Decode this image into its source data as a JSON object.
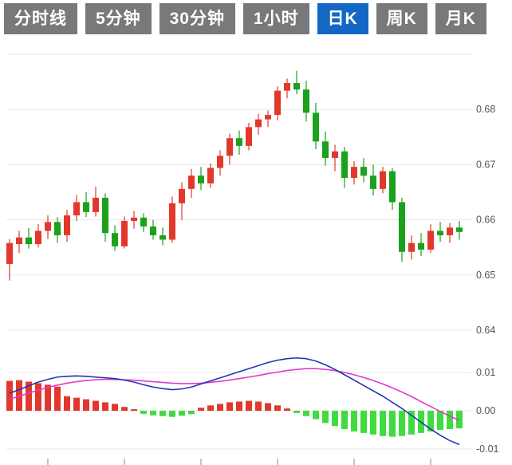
{
  "toolbar": {
    "items": [
      {
        "label": "分时线",
        "active": false
      },
      {
        "label": "5分钟",
        "active": false
      },
      {
        "label": "30分钟",
        "active": false
      },
      {
        "label": "1小时",
        "active": false
      },
      {
        "label": "日K",
        "active": true
      },
      {
        "label": "周K",
        "active": false
      },
      {
        "label": "月K",
        "active": false
      }
    ],
    "active_bg": "#1268c4",
    "inactive_bg": "#77797b",
    "text_color": "#ffffff"
  },
  "chart_data": {
    "type": "candlestick+macd",
    "title": "",
    "grid": true,
    "grid_color": "#e7e7e7",
    "axis_label_color": "#555555",
    "main": {
      "ylim": [
        0.64,
        0.69
      ],
      "grid_top": 0.69,
      "yticks": [
        0.68,
        0.67,
        0.66,
        0.65,
        0.64
      ],
      "up_color": "#e2382c",
      "down_color": "#1ba11b",
      "candles_format": "[open, high, low, close]",
      "candles": [
        [
          0.652,
          0.6565,
          0.649,
          0.6558
        ],
        [
          0.6556,
          0.658,
          0.654,
          0.6568
        ],
        [
          0.6568,
          0.6585,
          0.6548,
          0.6556
        ],
        [
          0.6556,
          0.6592,
          0.655,
          0.658
        ],
        [
          0.658,
          0.6608,
          0.6565,
          0.6596
        ],
        [
          0.6596,
          0.6605,
          0.6558,
          0.6572
        ],
        [
          0.6572,
          0.6618,
          0.656,
          0.6608
        ],
        [
          0.6608,
          0.6645,
          0.6598,
          0.6632
        ],
        [
          0.6632,
          0.665,
          0.6605,
          0.6614
        ],
        [
          0.6614,
          0.666,
          0.6606,
          0.664
        ],
        [
          0.664,
          0.6648,
          0.656,
          0.6576
        ],
        [
          0.6576,
          0.659,
          0.6544,
          0.6552
        ],
        [
          0.6552,
          0.6606,
          0.6548,
          0.6598
        ],
        [
          0.6598,
          0.6616,
          0.6584,
          0.6604
        ],
        [
          0.6604,
          0.6612,
          0.6578,
          0.6588
        ],
        [
          0.6588,
          0.66,
          0.6564,
          0.6572
        ],
        [
          0.6572,
          0.6586,
          0.6554,
          0.6564
        ],
        [
          0.6564,
          0.6642,
          0.6558,
          0.663
        ],
        [
          0.663,
          0.6668,
          0.66,
          0.6656
        ],
        [
          0.6656,
          0.6692,
          0.664,
          0.668
        ],
        [
          0.668,
          0.6696,
          0.6654,
          0.6666
        ],
        [
          0.6666,
          0.6702,
          0.6658,
          0.6694
        ],
        [
          0.6694,
          0.6726,
          0.668,
          0.6716
        ],
        [
          0.6716,
          0.6756,
          0.67,
          0.6748
        ],
        [
          0.6748,
          0.6762,
          0.6718,
          0.6734
        ],
        [
          0.6734,
          0.6776,
          0.6726,
          0.6768
        ],
        [
          0.6768,
          0.6792,
          0.6754,
          0.6782
        ],
        [
          0.6782,
          0.6798,
          0.6768,
          0.679
        ],
        [
          0.679,
          0.6842,
          0.678,
          0.6834
        ],
        [
          0.6834,
          0.6856,
          0.682,
          0.6848
        ],
        [
          0.6848,
          0.687,
          0.6828,
          0.6836
        ],
        [
          0.6836,
          0.6852,
          0.6778,
          0.6794
        ],
        [
          0.6794,
          0.6812,
          0.6728,
          0.6742
        ],
        [
          0.6742,
          0.676,
          0.6698,
          0.6712
        ],
        [
          0.6712,
          0.6736,
          0.6688,
          0.6724
        ],
        [
          0.6724,
          0.6732,
          0.6658,
          0.6676
        ],
        [
          0.6676,
          0.6706,
          0.6664,
          0.6696
        ],
        [
          0.6696,
          0.6712,
          0.6668,
          0.668
        ],
        [
          0.668,
          0.67,
          0.6644,
          0.6656
        ],
        [
          0.6656,
          0.6696,
          0.6648,
          0.6688
        ],
        [
          0.6688,
          0.6694,
          0.6618,
          0.6632
        ],
        [
          0.6632,
          0.664,
          0.6524,
          0.6542
        ],
        [
          0.6542,
          0.6572,
          0.6528,
          0.6558
        ],
        [
          0.6558,
          0.6576,
          0.6534,
          0.6546
        ],
        [
          0.6546,
          0.6592,
          0.654,
          0.658
        ],
        [
          0.658,
          0.6596,
          0.656,
          0.6572
        ],
        [
          0.6572,
          0.6594,
          0.6558,
          0.6586
        ],
        [
          0.6586,
          0.6598,
          0.6564,
          0.6578
        ]
      ]
    },
    "macd": {
      "ylim": [
        -0.0135,
        0.0155
      ],
      "yticks": [
        0.01,
        0,
        -0.01
      ],
      "dif_color": "#2036b8",
      "dea_color": "#e13ad0",
      "hist_up_color": "#e2382c",
      "hist_down_color": "#3fdc3f",
      "hist": [
        0.0078,
        0.008,
        0.0076,
        0.0072,
        0.0068,
        0.0063,
        0.0038,
        0.0034,
        0.003,
        0.0026,
        0.0022,
        0.0018,
        0.001,
        0.0004,
        -0.0008,
        -0.0012,
        -0.0014,
        -0.0016,
        -0.0013,
        -0.0009,
        0.0008,
        0.0014,
        0.0018,
        0.0022,
        0.0024,
        0.0026,
        0.0024,
        0.002,
        0.0014,
        0.0006,
        -0.0006,
        -0.0014,
        -0.0022,
        -0.0032,
        -0.004,
        -0.0048,
        -0.0054,
        -0.0058,
        -0.0062,
        -0.0066,
        -0.0068,
        -0.0066,
        -0.0062,
        -0.0058,
        -0.0054,
        -0.005,
        -0.0048,
        -0.0046
      ],
      "dif": [
        0.0046,
        0.0055,
        0.0065,
        0.0075,
        0.0082,
        0.0088,
        0.009,
        0.0091,
        0.009,
        0.0088,
        0.0086,
        0.0084,
        0.008,
        0.0075,
        0.0068,
        0.0062,
        0.0058,
        0.0055,
        0.0057,
        0.0062,
        0.007,
        0.0078,
        0.0086,
        0.0094,
        0.0102,
        0.011,
        0.0118,
        0.0126,
        0.0132,
        0.0136,
        0.0138,
        0.0136,
        0.013,
        0.012,
        0.0108,
        0.0094,
        0.008,
        0.0066,
        0.0052,
        0.0038,
        0.0022,
        0.0006,
        -0.0012,
        -0.003,
        -0.0048,
        -0.0064,
        -0.0078,
        -0.0088
      ],
      "dea": [
        0.003,
        0.0038,
        0.0046,
        0.0054,
        0.0061,
        0.0067,
        0.0072,
        0.0076,
        0.0079,
        0.0081,
        0.0082,
        0.0082,
        0.0081,
        0.008,
        0.0078,
        0.0076,
        0.0074,
        0.0072,
        0.0071,
        0.0071,
        0.0072,
        0.0074,
        0.0077,
        0.008,
        0.0084,
        0.0088,
        0.0092,
        0.0097,
        0.0101,
        0.0105,
        0.0108,
        0.011,
        0.011,
        0.0108,
        0.0105,
        0.01,
        0.0094,
        0.0087,
        0.0079,
        0.007,
        0.006,
        0.0049,
        0.0037,
        0.0024,
        0.0011,
        -0.0002,
        -0.0014,
        -0.0025
      ]
    }
  }
}
